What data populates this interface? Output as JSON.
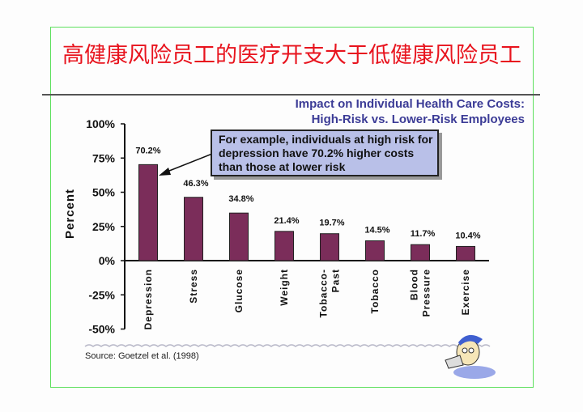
{
  "slide": {
    "title": "高健康风险员工的医疗开支大于低健康风险员工",
    "callout": "For example, individuals at high risk for depression have 70.2% higher costs than those at lower risk",
    "source": "Source: Goetzel et al. (1998)"
  },
  "colors": {
    "bar": "#7b2d5a",
    "title": "#e8141e",
    "chart_title": "#3b3b96",
    "callout_bg": "#b9c0e8"
  },
  "chart_data": {
    "type": "bar",
    "title_lines": [
      "Impact on Individual Health Care Costs:",
      "High-Risk vs. Lower-Risk Employees"
    ],
    "ylabel": "Percent",
    "xlabel": "",
    "ylim": [
      -50,
      100
    ],
    "yticks": [
      100,
      75,
      50,
      25,
      0,
      -25,
      -50
    ],
    "ytick_labels": [
      "100%",
      "75%",
      "50%",
      "25%",
      "0%",
      "-25%",
      "-50%"
    ],
    "categories": [
      [
        "Depression"
      ],
      [
        "Stress"
      ],
      [
        "Glucose"
      ],
      [
        "Weight"
      ],
      [
        "Tobacco-",
        "Past"
      ],
      [
        "Tobacco"
      ],
      [
        "Blood",
        "Pressure"
      ],
      [
        "Exercise"
      ]
    ],
    "values": [
      70.2,
      46.3,
      34.8,
      21.4,
      19.7,
      14.5,
      11.7,
      10.4
    ],
    "data_labels": [
      "70.2%",
      "46.3%",
      "34.8%",
      "21.4%",
      "19.7%",
      "14.5%",
      "11.7%",
      "10.4%"
    ],
    "grid": false,
    "legend": "none"
  }
}
